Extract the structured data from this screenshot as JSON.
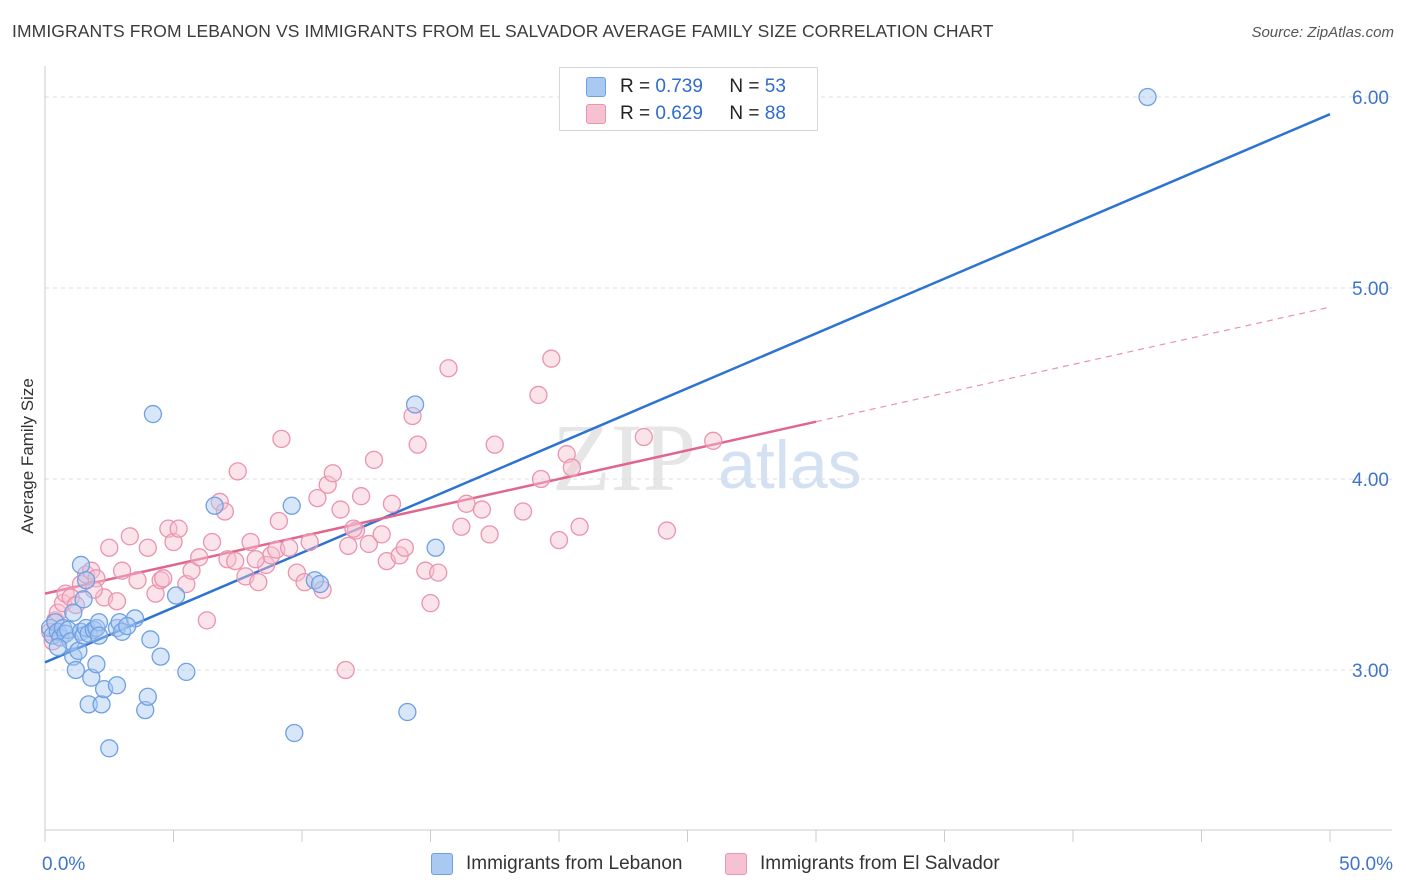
{
  "header": {
    "title": "IMMIGRANTS FROM LEBANON VS IMMIGRANTS FROM EL SALVADOR AVERAGE FAMILY SIZE CORRELATION CHART",
    "source": "Source: ZipAtlas.com"
  },
  "watermark": {
    "zip": "ZIP",
    "atlas": "atlas"
  },
  "legend": {
    "rows": [
      {
        "r_label": "R =",
        "r_value": "0.739",
        "n_label": "N =",
        "n_value": "53"
      },
      {
        "r_label": "R =",
        "r_value": "0.629",
        "n_label": "N =",
        "n_value": "88"
      }
    ]
  },
  "bottom_legend": {
    "lebanon": "Immigrants from Lebanon",
    "elsalvador": "Immigrants from El Salvador"
  },
  "colors": {
    "lebanon_fill": "#a9c8f2",
    "lebanon_stroke": "#6fa0e2",
    "lebanon_line": "#2d73d2",
    "elsalvador_fill": "#f6c1d1",
    "elsalvador_stroke": "#eb93b0",
    "elsalvador_line": "#e0668e"
  },
  "chart_data": {
    "type": "scatter",
    "ylabel": "Average Family Size",
    "xlabel": "",
    "xlim": [
      0,
      50
    ],
    "ylim": [
      2.0,
      6.15
    ],
    "x_tick_labels": [
      "0.0%",
      "50.0%"
    ],
    "y_ticks": [
      3.0,
      4.0,
      5.0,
      6.0
    ],
    "y_tick_labels": [
      "3.00",
      "4.00",
      "5.00",
      "6.00"
    ],
    "grid": true,
    "legend_position": "top-center",
    "series": [
      {
        "name": "Immigrants from Lebanon",
        "points": [
          [
            0.2,
            3.22
          ],
          [
            0.3,
            3.18
          ],
          [
            0.4,
            3.25
          ],
          [
            0.5,
            3.2
          ],
          [
            0.6,
            3.17
          ],
          [
            0.7,
            3.22
          ],
          [
            0.8,
            3.19
          ],
          [
            0.9,
            3.21
          ],
          [
            1.0,
            3.15
          ],
          [
            1.1,
            3.07
          ],
          [
            1.2,
            3.0
          ],
          [
            1.3,
            3.1
          ],
          [
            1.4,
            3.2
          ],
          [
            1.5,
            3.18
          ],
          [
            1.6,
            3.22
          ],
          [
            1.7,
            3.19
          ],
          [
            1.4,
            3.55
          ],
          [
            1.5,
            3.37
          ],
          [
            1.6,
            3.47
          ],
          [
            1.7,
            2.82
          ],
          [
            1.8,
            2.96
          ],
          [
            1.9,
            3.21
          ],
          [
            2.0,
            3.22
          ],
          [
            2.1,
            3.25
          ],
          [
            2.0,
            3.03
          ],
          [
            2.1,
            3.18
          ],
          [
            2.2,
            2.82
          ],
          [
            2.3,
            2.9
          ],
          [
            2.5,
            2.59
          ],
          [
            2.8,
            3.22
          ],
          [
            2.9,
            3.25
          ],
          [
            3.0,
            3.2
          ],
          [
            3.5,
            3.27
          ],
          [
            3.9,
            2.79
          ],
          [
            4.0,
            2.86
          ],
          [
            4.1,
            3.16
          ],
          [
            4.2,
            4.34
          ],
          [
            4.5,
            3.07
          ],
          [
            5.1,
            3.39
          ],
          [
            5.5,
            2.99
          ],
          [
            6.6,
            3.86
          ],
          [
            9.7,
            2.67
          ],
          [
            9.6,
            3.86
          ],
          [
            10.5,
            3.47
          ],
          [
            10.7,
            3.45
          ],
          [
            14.1,
            2.78
          ],
          [
            14.4,
            4.39
          ],
          [
            15.2,
            3.64
          ],
          [
            42.9,
            6.0
          ],
          [
            2.8,
            2.92
          ],
          [
            1.1,
            3.3
          ],
          [
            0.5,
            3.12
          ],
          [
            3.2,
            3.23
          ]
        ],
        "trendline": {
          "x": [
            0,
            50
          ],
          "y": [
            3.04,
            5.91
          ]
        }
      },
      {
        "name": "Immigrants from El Salvador",
        "points": [
          [
            0.2,
            3.2
          ],
          [
            0.3,
            3.15
          ],
          [
            0.4,
            3.26
          ],
          [
            0.5,
            3.3
          ],
          [
            0.7,
            3.35
          ],
          [
            0.8,
            3.4
          ],
          [
            1.0,
            3.38
          ],
          [
            1.2,
            3.34
          ],
          [
            1.4,
            3.45
          ],
          [
            1.6,
            3.5
          ],
          [
            1.8,
            3.52
          ],
          [
            2.0,
            3.48
          ],
          [
            2.3,
            3.38
          ],
          [
            2.5,
            3.64
          ],
          [
            2.8,
            3.36
          ],
          [
            3.0,
            3.52
          ],
          [
            3.3,
            3.7
          ],
          [
            3.6,
            3.47
          ],
          [
            4.0,
            3.64
          ],
          [
            4.3,
            3.4
          ],
          [
            4.5,
            3.47
          ],
          [
            4.8,
            3.74
          ],
          [
            5.0,
            3.67
          ],
          [
            5.2,
            3.74
          ],
          [
            5.5,
            3.45
          ],
          [
            5.7,
            3.52
          ],
          [
            6.0,
            3.59
          ],
          [
            6.3,
            3.26
          ],
          [
            6.5,
            3.67
          ],
          [
            6.8,
            3.88
          ],
          [
            7.1,
            3.58
          ],
          [
            7.4,
            3.57
          ],
          [
            7.5,
            4.04
          ],
          [
            7.8,
            3.49
          ],
          [
            8.0,
            3.67
          ],
          [
            8.3,
            3.46
          ],
          [
            8.6,
            3.55
          ],
          [
            8.8,
            3.6
          ],
          [
            9.0,
            3.63
          ],
          [
            9.2,
            4.21
          ],
          [
            9.5,
            3.64
          ],
          [
            9.8,
            3.51
          ],
          [
            10.1,
            3.46
          ],
          [
            10.3,
            3.67
          ],
          [
            10.6,
            3.9
          ],
          [
            10.8,
            3.42
          ],
          [
            11.0,
            3.97
          ],
          [
            11.2,
            4.03
          ],
          [
            11.5,
            3.84
          ],
          [
            11.8,
            3.65
          ],
          [
            12.1,
            3.73
          ],
          [
            12.3,
            3.91
          ],
          [
            12.6,
            3.66
          ],
          [
            12.8,
            4.1
          ],
          [
            13.1,
            3.71
          ],
          [
            13.3,
            3.57
          ],
          [
            13.5,
            3.87
          ],
          [
            13.8,
            3.6
          ],
          [
            14.0,
            3.64
          ],
          [
            14.3,
            4.33
          ],
          [
            14.5,
            4.18
          ],
          [
            14.8,
            3.52
          ],
          [
            15.0,
            3.35
          ],
          [
            15.3,
            3.51
          ],
          [
            15.7,
            4.58
          ],
          [
            16.2,
            3.75
          ],
          [
            16.4,
            3.87
          ],
          [
            17.0,
            3.84
          ],
          [
            17.3,
            3.71
          ],
          [
            17.5,
            4.18
          ],
          [
            18.6,
            3.83
          ],
          [
            19.2,
            4.44
          ],
          [
            19.3,
            4.0
          ],
          [
            19.7,
            4.63
          ],
          [
            20.0,
            3.68
          ],
          [
            20.3,
            4.13
          ],
          [
            20.5,
            4.06
          ],
          [
            20.8,
            3.75
          ],
          [
            23.3,
            4.22
          ],
          [
            24.2,
            3.73
          ],
          [
            26.0,
            4.2
          ],
          [
            11.7,
            3.0
          ],
          [
            9.1,
            3.78
          ],
          [
            7.0,
            3.83
          ],
          [
            12.0,
            3.74
          ],
          [
            8.2,
            3.58
          ],
          [
            1.9,
            3.42
          ],
          [
            4.6,
            3.48
          ]
        ],
        "trendline": {
          "x": [
            0,
            30
          ],
          "y": [
            3.4,
            4.3
          ]
        },
        "trendline_extension": {
          "x": [
            30,
            50
          ],
          "y": [
            4.3,
            4.9
          ]
        }
      }
    ]
  }
}
